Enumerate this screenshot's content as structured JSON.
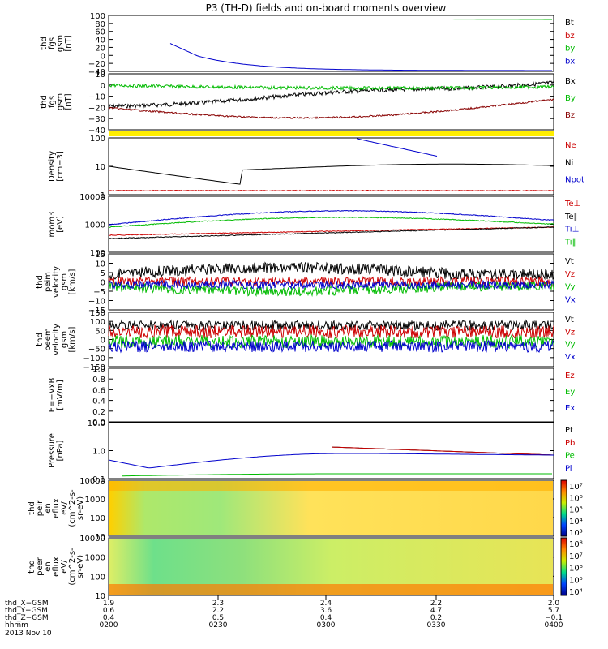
{
  "title": "P3 (TH-D) fields and on-board moments overview",
  "chart_data": [
    {
      "type": "line",
      "ylabel": [
        "thd",
        "fgs",
        "gsm",
        "[nT]"
      ],
      "ticks": [
        "100",
        "80",
        "60",
        "40",
        "20",
        "0",
        "−20",
        "−40"
      ],
      "legend": [
        {
          "name": "Bt",
          "color": "#000000"
        },
        {
          "name": "bz",
          "color": "#cc0000"
        },
        {
          "name": "by",
          "color": "#00bb00"
        },
        {
          "name": "bx",
          "color": "#0000cc"
        }
      ]
    },
    {
      "type": "line",
      "ylabel": [
        "thd",
        "fgs",
        "gsm",
        "[nT]"
      ],
      "ticks": [
        "10",
        "0",
        "−10",
        "−20",
        "−30",
        "−40"
      ],
      "legend": [
        {
          "name": "Bx",
          "color": "#000000"
        },
        {
          "name": "By",
          "color": "#00bb00"
        },
        {
          "name": "Bz",
          "color": "#880000"
        }
      ]
    },
    {
      "type": "line",
      "ylabel": [
        "Density",
        "[cm−3]"
      ],
      "ticks": [
        "100",
        "10",
        "1"
      ],
      "legend": [
        {
          "name": "Ne",
          "color": "#cc0000"
        },
        {
          "name": "Ni",
          "color": "#000000"
        },
        {
          "name": "Npot",
          "color": "#0000cc"
        }
      ]
    },
    {
      "type": "line",
      "ylabel": [
        "mom3",
        "[eV]"
      ],
      "ticks": [
        "10000",
        "1000",
        "100"
      ],
      "legend": [
        {
          "name": "Te⊥",
          "color": "#cc0000"
        },
        {
          "name": "Te∥",
          "color": "#000000"
        },
        {
          "name": "Ti⊥",
          "color": "#0000cc"
        },
        {
          "name": "Ti∥",
          "color": "#00bb00"
        }
      ]
    },
    {
      "type": "line",
      "ylabel": [
        "thd",
        "peim",
        "velocity",
        "gsm",
        "[km/s]"
      ],
      "ticks": [
        "15",
        "10",
        "5",
        "0",
        "−5",
        "−10",
        "−15"
      ],
      "legend": [
        {
          "name": "Vt",
          "color": "#000000"
        },
        {
          "name": "Vz",
          "color": "#cc0000"
        },
        {
          "name": "Vy",
          "color": "#00bb00"
        },
        {
          "name": "Vx",
          "color": "#0000cc"
        }
      ]
    },
    {
      "type": "line",
      "ylabel": [
        "thd",
        "peem",
        "velocity",
        "gsm",
        "[km/s]"
      ],
      "ticks": [
        "150",
        "100",
        "50",
        "0",
        "−50",
        "−100",
        "−150"
      ],
      "legend": [
        {
          "name": "Vt",
          "color": "#000000"
        },
        {
          "name": "Vz",
          "color": "#cc0000"
        },
        {
          "name": "Vy",
          "color": "#00bb00"
        },
        {
          "name": "Vx",
          "color": "#0000cc"
        }
      ]
    },
    {
      "type": "line",
      "ylabel": [
        "E=−VxB",
        "[mV/m]"
      ],
      "ticks": [
        "1.0",
        "0.8",
        "0.6",
        "0.4",
        "0.2",
        "0.0"
      ],
      "legend": [
        {
          "name": "Ez",
          "color": "#cc0000"
        },
        {
          "name": "Ey",
          "color": "#00bb00"
        },
        {
          "name": "Ex",
          "color": "#0000cc"
        }
      ]
    },
    {
      "type": "line",
      "ylabel": [
        "Pressure",
        "[nPa]"
      ],
      "ticks": [
        "10.0",
        "1.0",
        "0.1"
      ],
      "legend": [
        {
          "name": "Pt",
          "color": "#000000"
        },
        {
          "name": "Pb",
          "color": "#cc0000"
        },
        {
          "name": "Pe",
          "color": "#00bb00"
        },
        {
          "name": "Pi",
          "color": "#0000cc"
        }
      ]
    },
    {
      "type": "heatmap",
      "ylabel": [
        "thd",
        "peir",
        "en",
        "eflux",
        "eV/",
        "(cm^2-s-",
        "sr-eV)"
      ],
      "ticks": [
        "10000",
        "1000",
        "100",
        "10"
      ],
      "colorbar": [
        "10⁷",
        "10⁶",
        "10⁵",
        "10⁴",
        "10³"
      ]
    },
    {
      "type": "heatmap",
      "ylabel": [
        "thd",
        "peer",
        "en",
        "eflux",
        "eV/",
        "(cm^2-s-",
        "sr-eV)"
      ],
      "ticks": [
        "10000",
        "1000",
        "100",
        "10"
      ],
      "colorbar": [
        "10⁸",
        "10⁷",
        "10⁶",
        "10⁵",
        "10⁴"
      ]
    }
  ],
  "xaxis": {
    "rows": [
      {
        "label": "thd_X−GSM",
        "values": [
          "1.9",
          "2.3",
          "2.4",
          "2.2",
          "2.0"
        ]
      },
      {
        "label": "thd_Y−GSM",
        "values": [
          "0.6",
          "2.2",
          "3.6",
          "4.7",
          "5.7"
        ]
      },
      {
        "label": "thd_Z−GSM",
        "values": [
          "0.4",
          "0.5",
          "0.4",
          "0.2",
          "−0.1"
        ]
      },
      {
        "label": "hhmm",
        "values": [
          "0200",
          "0230",
          "0300",
          "0330",
          "0400"
        ]
      }
    ],
    "date": "2013 Nov 10"
  },
  "colors": {
    "black": "#000000",
    "red": "#cc0000",
    "green": "#00bb00",
    "blue": "#0000cc",
    "yellow": "#ffee00",
    "darkred": "#880000"
  }
}
